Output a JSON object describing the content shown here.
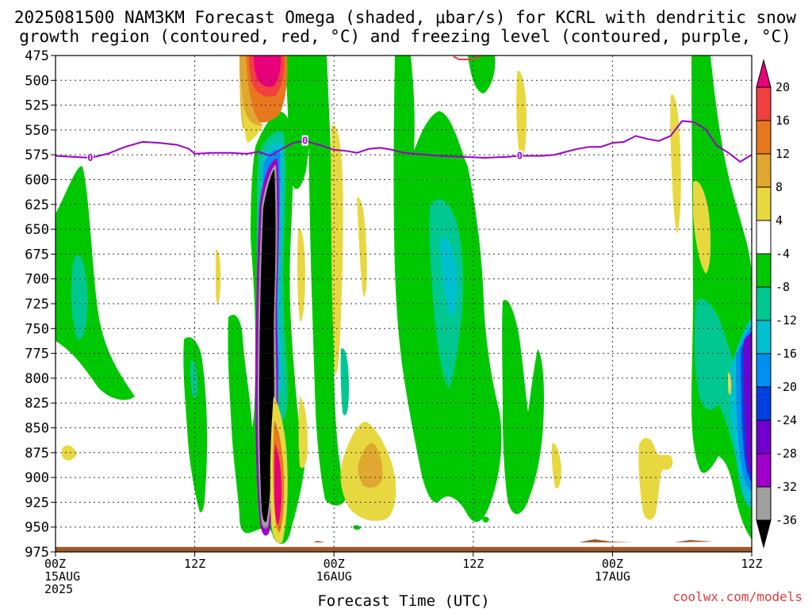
{
  "title": {
    "line1": "2025081500 NAM3KM Forecast Omega (shaded, μbar/s) for KCRL with dendritic snow",
    "line2": "growth region (contoured, red, °C) and freezing level (contoured, purple, °C)"
  },
  "credit": "coolwx.com/models",
  "chart_data": {
    "type": "heatmap",
    "xlabel": "Forecast Time (UTC)",
    "x_range_hours": [
      0,
      60
    ],
    "y_range_mb": [
      475,
      975
    ],
    "y_axis_inverted": true,
    "y_ticks": [
      "475",
      "500",
      "525",
      "550",
      "575",
      "600",
      "625",
      "650",
      "675",
      "700",
      "725",
      "750",
      "775",
      "800",
      "825",
      "850",
      "875",
      "900",
      "925",
      "950",
      "975"
    ],
    "x_ticks": [
      {
        "hour": 0,
        "lines": [
          "00Z",
          "15AUG",
          "2025"
        ]
      },
      {
        "hour": 12,
        "lines": [
          "12Z"
        ]
      },
      {
        "hour": 24,
        "lines": [
          "00Z",
          "16AUG"
        ]
      },
      {
        "hour": 36,
        "lines": [
          "12Z"
        ]
      },
      {
        "hour": 48,
        "lines": [
          "00Z",
          "17AUG"
        ]
      },
      {
        "hour": 60,
        "lines": [
          "12Z"
        ]
      }
    ],
    "grid": true,
    "colorbar": {
      "labels": [
        "20",
        "16",
        "12",
        "8",
        "4",
        "-4",
        "-8",
        "-12",
        "-16",
        "-20",
        "-24",
        "-28",
        "-32",
        "-36"
      ],
      "colors": [
        "#e8007a",
        "#f04040",
        "#e8781e",
        "#e0a830",
        "#e8d840",
        "#ffffff",
        "#00c800",
        "#00c890",
        "#00c0d0",
        "#0090f0",
        "#0040e0",
        "#7000d0",
        "#a000c8",
        "#a0a0a0",
        "#000000"
      ],
      "bounds": [
        20,
        16,
        12,
        8,
        4,
        -4,
        -8,
        -12,
        -16,
        -20,
        -24,
        -28,
        -32,
        -36
      ]
    },
    "freezing_level": {
      "color": "#9b00c8",
      "label": "0",
      "label_hours": [
        3,
        21.5,
        40
      ],
      "points": [
        [
          0,
          576
        ],
        [
          1.5,
          577
        ],
        [
          3,
          578
        ],
        [
          4.5,
          574
        ],
        [
          6,
          567
        ],
        [
          7.5,
          562
        ],
        [
          9,
          563
        ],
        [
          10.5,
          565
        ],
        [
          11.5,
          569
        ],
        [
          12,
          574
        ],
        [
          13.5,
          573
        ],
        [
          15,
          573
        ],
        [
          16.5,
          574
        ],
        [
          17.5,
          572
        ],
        [
          18.5,
          576
        ],
        [
          19.5,
          569
        ],
        [
          20.5,
          563
        ],
        [
          21.5,
          561
        ],
        [
          23,
          566
        ],
        [
          24,
          570
        ],
        [
          25,
          571
        ],
        [
          26,
          573
        ],
        [
          27,
          569
        ],
        [
          28,
          568
        ],
        [
          29,
          570
        ],
        [
          30,
          573
        ],
        [
          31,
          574
        ],
        [
          33,
          576
        ],
        [
          35,
          577
        ],
        [
          37,
          578
        ],
        [
          39,
          577
        ],
        [
          40,
          576
        ],
        [
          42,
          576
        ],
        [
          43,
          575
        ],
        [
          44,
          572
        ],
        [
          45,
          569
        ],
        [
          46,
          567
        ],
        [
          47,
          567
        ],
        [
          48,
          563
        ],
        [
          49,
          562
        ],
        [
          50,
          556
        ],
        [
          51,
          559
        ],
        [
          52,
          561
        ],
        [
          53,
          556
        ],
        [
          54,
          541
        ],
        [
          55,
          542
        ],
        [
          56,
          549
        ],
        [
          57,
          566
        ],
        [
          58,
          573
        ],
        [
          59,
          582
        ],
        [
          60,
          575
        ]
      ]
    },
    "dgz_contour": {
      "color": "#e83c3c",
      "points": [
        [
          34.3,
          476
        ],
        [
          34.8,
          479
        ],
        [
          35.6,
          479
        ],
        [
          36.3,
          477
        ],
        [
          36.7,
          475
        ]
      ]
    },
    "surface": {
      "color": "#a05828",
      "top_mb": 970
    }
  }
}
